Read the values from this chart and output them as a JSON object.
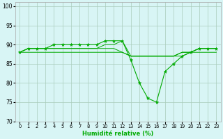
{
  "x": [
    0,
    1,
    2,
    3,
    4,
    5,
    6,
    7,
    8,
    9,
    10,
    11,
    12,
    13,
    14,
    15,
    16,
    17,
    18,
    19,
    20,
    21,
    22,
    23
  ],
  "line1": [
    88,
    89,
    89,
    89,
    90,
    90,
    90,
    90,
    90,
    90,
    91,
    91,
    91,
    86,
    80,
    76,
    75,
    83,
    85,
    87,
    88,
    89,
    89,
    89
  ],
  "line2": [
    88,
    89,
    89,
    89,
    89,
    89,
    89,
    89,
    89,
    89,
    90,
    90,
    91,
    87,
    87,
    87,
    87,
    87,
    87,
    88,
    88,
    89,
    89,
    89
  ],
  "line3": [
    88,
    89,
    89,
    89,
    89,
    89,
    89,
    89,
    89,
    89,
    89,
    89,
    88,
    87,
    87,
    87,
    87,
    87,
    87,
    88,
    88,
    89,
    89,
    89
  ],
  "line4": [
    88,
    88,
    88,
    88,
    88,
    88,
    88,
    88,
    88,
    88,
    88,
    88,
    88,
    87,
    87,
    87,
    87,
    87,
    87,
    87,
    88,
    88,
    88,
    88
  ],
  "ylim": [
    70,
    101
  ],
  "yticks": [
    70,
    75,
    80,
    85,
    90,
    95,
    100
  ],
  "xlabel": "Humidité relative (%)",
  "line_color": "#00aa00",
  "bg_color": "#d8f5f5",
  "grid_color": "#aaccbb",
  "marker": "*",
  "marker_size": 3.5,
  "figwidth": 3.2,
  "figheight": 2.0,
  "dpi": 100
}
